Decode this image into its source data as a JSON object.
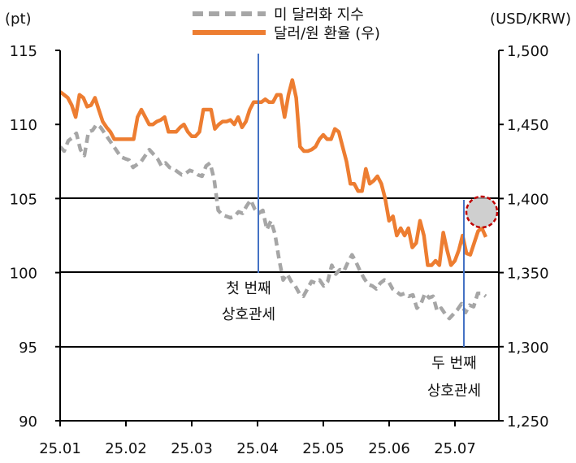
{
  "chart_data": {
    "type": "line",
    "left_unit": "(pt)",
    "right_unit": "(USD/KRW)",
    "ylim_left": [
      90,
      115
    ],
    "ylim_right": [
      1250,
      1500
    ],
    "yticks_left": [
      "115",
      "110",
      "105",
      "100",
      "95",
      "90"
    ],
    "yticks_right": [
      "1,500",
      "1,450",
      "1,400",
      "1,350",
      "1,300",
      "1,250"
    ],
    "x_labels": [
      "25.01",
      "25.02",
      "25.03",
      "25.04",
      "25.05",
      "25.06",
      "25.07"
    ],
    "grid": "horizontal",
    "legend_position": "top-center",
    "series": [
      {
        "name": "미 달러화 지수",
        "axis": "left",
        "color": "#a6a6a6",
        "style": "dashed",
        "values": [
          108.5,
          108.2,
          108.9,
          109.1,
          109.4,
          108.3,
          107.9,
          109.5,
          109.6,
          110.0,
          109.8,
          109.4,
          109.0,
          108.6,
          108.2,
          107.8,
          107.7,
          107.6,
          107.1,
          107.3,
          107.5,
          107.9,
          108.3,
          108.0,
          107.7,
          107.2,
          107.4,
          107.1,
          107.0,
          106.8,
          106.6,
          106.7,
          106.9,
          106.8,
          106.6,
          106.5,
          107.2,
          107.4,
          106.3,
          104.2,
          103.9,
          103.8,
          103.7,
          103.8,
          104.1,
          104.0,
          104.5,
          104.9,
          104.3,
          104.0,
          104.2,
          102.9,
          103.5,
          102.6,
          100.9,
          99.5,
          99.9,
          99.4,
          99.1,
          98.6,
          98.4,
          98.9,
          99.4,
          99.3,
          99.5,
          99.1,
          99.4,
          100.5,
          99.9,
          100.2,
          100.1,
          100.7,
          101.2,
          100.7,
          100.1,
          99.6,
          99.2,
          99.1,
          98.9,
          99.3,
          99.5,
          99.4,
          98.9,
          98.7,
          98.5,
          98.6,
          98.4,
          98.5,
          97.6,
          97.9,
          98.6,
          98.3,
          98.4,
          97.4,
          97.6,
          97.2,
          96.9,
          97.2,
          97.5,
          97.9,
          97.3,
          97.8,
          97.7,
          98.6,
          98.6,
          98.4
        ]
      },
      {
        "name": "달러/원 환율 (우)",
        "axis": "right",
        "color": "#ed7d31",
        "style": "solid",
        "values": [
          1472,
          1470,
          1468,
          1463,
          1455,
          1470,
          1468,
          1462,
          1463,
          1468,
          1460,
          1452,
          1448,
          1445,
          1440,
          1440,
          1440,
          1440,
          1440,
          1440,
          1455,
          1460,
          1455,
          1450,
          1450,
          1452,
          1453,
          1455,
          1445,
          1445,
          1445,
          1448,
          1450,
          1445,
          1442,
          1442,
          1445,
          1460,
          1460,
          1460,
          1447,
          1450,
          1452,
          1452,
          1453,
          1450,
          1455,
          1448,
          1452,
          1460,
          1465,
          1465,
          1465,
          1467,
          1465,
          1465,
          1470,
          1470,
          1455,
          1470,
          1480,
          1468,
          1435,
          1432,
          1432,
          1433,
          1435,
          1440,
          1443,
          1440,
          1440,
          1447,
          1445,
          1435,
          1425,
          1410,
          1410,
          1405,
          1405,
          1420,
          1410,
          1412,
          1415,
          1410,
          1400,
          1385,
          1388,
          1375,
          1380,
          1375,
          1380,
          1367,
          1370,
          1385,
          1375,
          1355,
          1355,
          1358,
          1355,
          1377,
          1365,
          1355,
          1358,
          1365,
          1375,
          1363,
          1362,
          1370,
          1378,
          1380,
          1374
        ]
      }
    ],
    "annotations": [
      {
        "line1": "첫 번째",
        "line2": "상호관세",
        "x": "25.04 (Apr 2)"
      },
      {
        "line1": "두 번째",
        "line2": "상호관세",
        "x": "25.07 (Jul 7)"
      }
    ]
  }
}
